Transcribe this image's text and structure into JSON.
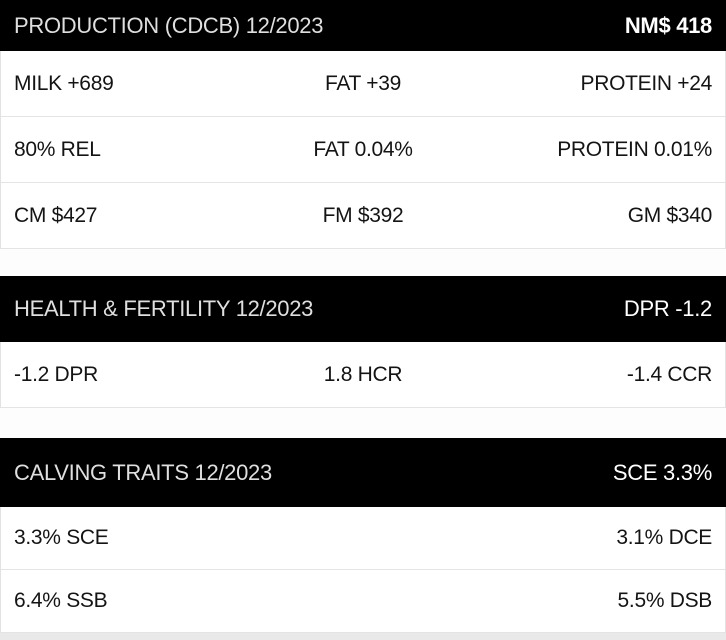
{
  "colors": {
    "header_bg": "#000000",
    "header_title_text": "#dfdfdf",
    "header_value_text": "#ffffff",
    "row_bg": "#ffffff",
    "row_text": "#141414",
    "border": "#e2e2e2",
    "page_bottom_strip": "#e9e9e9"
  },
  "sections": [
    {
      "title": "PRODUCTION (CDCB) 12/2023",
      "header_value": "NM$ 418",
      "rows": [
        {
          "left": "MILK +689",
          "center": "FAT +39",
          "right": "PROTEIN +24"
        },
        {
          "left": "80% REL",
          "center": "FAT 0.04%",
          "right": "PROTEIN 0.01%"
        },
        {
          "left": "CM $427",
          "center": "FM $392",
          "right": "GM $340"
        }
      ]
    },
    {
      "title": "HEALTH & FERTILITY 12/2023",
      "header_value": "DPR -1.2",
      "rows": [
        {
          "left": "-1.2 DPR",
          "center": "1.8 HCR",
          "right": "-1.4 CCR"
        }
      ]
    },
    {
      "title": "CALVING TRAITS 12/2023",
      "header_value": "SCE 3.3%",
      "rows": [
        {
          "left": "3.3% SCE",
          "center": "",
          "right": "3.1% DCE"
        },
        {
          "left": "6.4% SSB",
          "center": "",
          "right": "5.5% DSB"
        }
      ]
    }
  ]
}
